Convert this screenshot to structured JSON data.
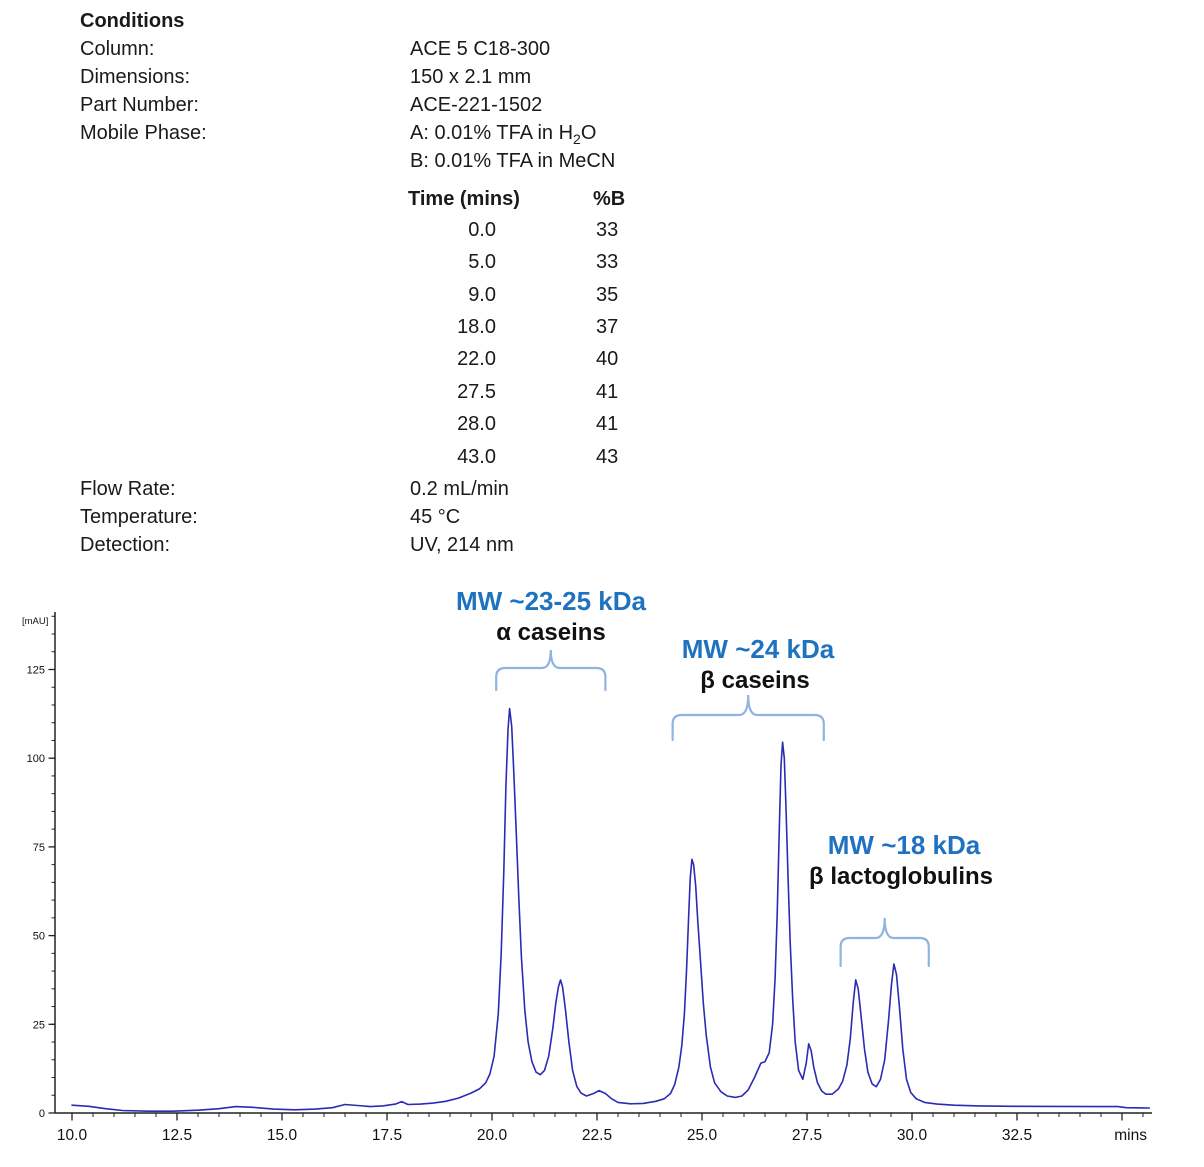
{
  "conditions": {
    "title": "Conditions",
    "column_label": "Column:",
    "column_value": "ACE 5 C18-300",
    "dimensions_label": "Dimensions:",
    "dimensions_value": "150 x 2.1 mm",
    "part_label": "Part Number:",
    "part_value": "ACE-221-1502",
    "mobile_label": "Mobile Phase:",
    "mobile_a_prefix": "A: 0.01% TFA in H",
    "mobile_a_sub": "2",
    "mobile_a_suffix": "O",
    "mobile_b": "B: 0.01% TFA in MeCN",
    "flow_label": "Flow Rate:",
    "flow_value": "0.2 mL/min",
    "temp_label": "Temperature:",
    "temp_value": "45 °C",
    "det_label": "Detection:",
    "det_value": "UV, 214 nm"
  },
  "gradient": {
    "time_header": "Time (mins)",
    "b_header": "%B",
    "rows": [
      {
        "time": "0.0",
        "b": "33"
      },
      {
        "time": "5.0",
        "b": "33"
      },
      {
        "time": "9.0",
        "b": "35"
      },
      {
        "time": "18.0",
        "b": "37"
      },
      {
        "time": "22.0",
        "b": "40"
      },
      {
        "time": "27.5",
        "b": "41"
      },
      {
        "time": "28.0",
        "b": "41"
      },
      {
        "time": "43.0",
        "b": "43"
      }
    ]
  },
  "chart_data": {
    "type": "line",
    "title": "",
    "xlabel": "mins",
    "ylabel": "[mAU]",
    "xlim": [
      9.6,
      35.7
    ],
    "ylim": [
      0,
      141
    ],
    "grid": false,
    "legend": "none",
    "trace_color": "#2b2bb4",
    "annotation_color": "#1e72bf",
    "brace_color": "#8fb4e2",
    "x_axis": {
      "unit": "mins",
      "labeled_ticks": [
        {
          "t": 10.0,
          "label": "10.0"
        },
        {
          "t": 12.5,
          "label": "12.5"
        },
        {
          "t": 15.0,
          "label": "15.0"
        },
        {
          "t": 17.5,
          "label": "17.5"
        },
        {
          "t": 20.0,
          "label": "20.0"
        },
        {
          "t": 22.5,
          "label": "22.5"
        },
        {
          "t": 25.0,
          "label": "25.0"
        },
        {
          "t": 27.5,
          "label": "27.5"
        },
        {
          "t": 30.0,
          "label": "30.0"
        },
        {
          "t": 32.5,
          "label": "32.5"
        }
      ],
      "unlabeled_major_ticks": [
        35.0
      ],
      "minor_tick_step": 0.5,
      "minor_tick_range": [
        10.0,
        35.5
      ]
    },
    "y_axis": {
      "unit": "[mAU]",
      "labeled_ticks": [
        {
          "v": 0,
          "label": "0"
        },
        {
          "v": 25,
          "label": "25"
        },
        {
          "v": 50,
          "label": "50"
        },
        {
          "v": 75,
          "label": "75"
        },
        {
          "v": 100,
          "label": "100"
        },
        {
          "v": 125,
          "label": "125"
        }
      ],
      "minor_tick_step": 5,
      "minor_tick_max": 140
    },
    "peaks": [
      {
        "name": "alpha casein 1",
        "rt_min": 20.4,
        "height_mau": 114
      },
      {
        "name": "alpha casein 2",
        "rt_min": 21.6,
        "height_mau": 38
      },
      {
        "name": "beta casein 1",
        "rt_min": 24.75,
        "height_mau": 72
      },
      {
        "name": "beta casein 2",
        "rt_min": 26.9,
        "height_mau": 105
      },
      {
        "name": "minor peak",
        "rt_min": 27.55,
        "height_mau": 20
      },
      {
        "name": "beta lactoglobulin 1",
        "rt_min": 28.65,
        "height_mau": 38
      },
      {
        "name": "beta lactoglobulin 2",
        "rt_min": 29.55,
        "height_mau": 42
      }
    ],
    "annotations": [
      {
        "id": "alpha-caseins",
        "mw": "MW ~23-25 kDa",
        "label": "α caseins",
        "brace": {
          "t1": 20.1,
          "t2": 22.7,
          "apex_t": 21.4
        }
      },
      {
        "id": "beta-caseins",
        "mw": "MW ~24 kDa",
        "label": "β caseins",
        "brace": {
          "t1": 24.3,
          "t2": 27.9,
          "apex_t": 26.1
        }
      },
      {
        "id": "beta-lactoglobulins",
        "mw": "MW ~18 kDa",
        "label": "β lactoglobulins",
        "brace": {
          "t1": 28.3,
          "t2": 30.4,
          "apex_t": 29.35
        }
      }
    ],
    "trace": [
      [
        10.0,
        2.2
      ],
      [
        10.4,
        1.9
      ],
      [
        10.8,
        1.2
      ],
      [
        11.2,
        0.7
      ],
      [
        11.8,
        0.5
      ],
      [
        12.4,
        0.5
      ],
      [
        13.0,
        0.8
      ],
      [
        13.5,
        1.2
      ],
      [
        13.9,
        1.8
      ],
      [
        14.3,
        1.6
      ],
      [
        14.8,
        1.1
      ],
      [
        15.3,
        0.9
      ],
      [
        15.8,
        1.1
      ],
      [
        16.2,
        1.5
      ],
      [
        16.5,
        2.4
      ],
      [
        16.8,
        2.1
      ],
      [
        17.1,
        1.8
      ],
      [
        17.4,
        2.0
      ],
      [
        17.7,
        2.5
      ],
      [
        17.85,
        3.2
      ],
      [
        18.0,
        2.4
      ],
      [
        18.3,
        2.5
      ],
      [
        18.6,
        2.8
      ],
      [
        18.9,
        3.3
      ],
      [
        19.2,
        4.2
      ],
      [
        19.5,
        5.6
      ],
      [
        19.7,
        6.8
      ],
      [
        19.85,
        8.5
      ],
      [
        19.95,
        11
      ],
      [
        20.05,
        16
      ],
      [
        20.15,
        28
      ],
      [
        20.22,
        45
      ],
      [
        20.28,
        68
      ],
      [
        20.33,
        92
      ],
      [
        20.38,
        108
      ],
      [
        20.42,
        114
      ],
      [
        20.47,
        109
      ],
      [
        20.52,
        96
      ],
      [
        20.58,
        78
      ],
      [
        20.64,
        60
      ],
      [
        20.7,
        44
      ],
      [
        20.78,
        29
      ],
      [
        20.86,
        20
      ],
      [
        20.95,
        14.5
      ],
      [
        21.05,
        11.5
      ],
      [
        21.15,
        10.8
      ],
      [
        21.25,
        12
      ],
      [
        21.35,
        16
      ],
      [
        21.45,
        24
      ],
      [
        21.52,
        31
      ],
      [
        21.58,
        35.5
      ],
      [
        21.63,
        37.5
      ],
      [
        21.68,
        35.5
      ],
      [
        21.75,
        29
      ],
      [
        21.83,
        20
      ],
      [
        21.92,
        12
      ],
      [
        22.02,
        7.5
      ],
      [
        22.12,
        5.6
      ],
      [
        22.25,
        4.8
      ],
      [
        22.4,
        5.4
      ],
      [
        22.55,
        6.3
      ],
      [
        22.7,
        5.5
      ],
      [
        22.85,
        4.0
      ],
      [
        23.0,
        3.0
      ],
      [
        23.3,
        2.6
      ],
      [
        23.6,
        2.7
      ],
      [
        23.9,
        3.3
      ],
      [
        24.1,
        4.0
      ],
      [
        24.25,
        5.5
      ],
      [
        24.35,
        8
      ],
      [
        24.45,
        13
      ],
      [
        24.52,
        19
      ],
      [
        24.58,
        28
      ],
      [
        24.63,
        40
      ],
      [
        24.68,
        55
      ],
      [
        24.72,
        66
      ],
      [
        24.76,
        71.5
      ],
      [
        24.8,
        70
      ],
      [
        24.85,
        64
      ],
      [
        24.9,
        54
      ],
      [
        24.97,
        42
      ],
      [
        25.03,
        31
      ],
      [
        25.1,
        22
      ],
      [
        25.2,
        13
      ],
      [
        25.3,
        8.5
      ],
      [
        25.45,
        6
      ],
      [
        25.6,
        4.8
      ],
      [
        25.8,
        4.4
      ],
      [
        25.95,
        4.8
      ],
      [
        26.1,
        6.5
      ],
      [
        26.25,
        10
      ],
      [
        26.4,
        14
      ],
      [
        26.5,
        14.5
      ],
      [
        26.6,
        17
      ],
      [
        26.68,
        25
      ],
      [
        26.74,
        38
      ],
      [
        26.79,
        56
      ],
      [
        26.84,
        80
      ],
      [
        26.88,
        98
      ],
      [
        26.92,
        104.5
      ],
      [
        26.96,
        100
      ],
      [
        27.0,
        86
      ],
      [
        27.05,
        66
      ],
      [
        27.1,
        48
      ],
      [
        27.16,
        32
      ],
      [
        27.22,
        20
      ],
      [
        27.3,
        12
      ],
      [
        27.4,
        9.5
      ],
      [
        27.48,
        14
      ],
      [
        27.54,
        19.5
      ],
      [
        27.6,
        17.5
      ],
      [
        27.66,
        13
      ],
      [
        27.75,
        8.5
      ],
      [
        27.85,
        6.2
      ],
      [
        27.95,
        5.3
      ],
      [
        28.1,
        5.3
      ],
      [
        28.25,
        6.8
      ],
      [
        28.35,
        9
      ],
      [
        28.45,
        13.5
      ],
      [
        28.53,
        21
      ],
      [
        28.6,
        31
      ],
      [
        28.66,
        37.5
      ],
      [
        28.72,
        35
      ],
      [
        28.79,
        27
      ],
      [
        28.87,
        18
      ],
      [
        28.95,
        11.5
      ],
      [
        29.05,
        8.2
      ],
      [
        29.15,
        7.4
      ],
      [
        29.25,
        9.5
      ],
      [
        29.35,
        15
      ],
      [
        29.44,
        26
      ],
      [
        29.51,
        36
      ],
      [
        29.57,
        42
      ],
      [
        29.63,
        39
      ],
      [
        29.7,
        30
      ],
      [
        29.78,
        18
      ],
      [
        29.87,
        9.5
      ],
      [
        29.97,
        5.8
      ],
      [
        30.1,
        4.0
      ],
      [
        30.3,
        3.0
      ],
      [
        30.6,
        2.5
      ],
      [
        31.0,
        2.2
      ],
      [
        31.6,
        2.0
      ],
      [
        32.4,
        1.9
      ],
      [
        33.4,
        1.85
      ],
      [
        34.4,
        1.8
      ],
      [
        34.9,
        1.8
      ],
      [
        35.1,
        1.5
      ],
      [
        35.65,
        1.4
      ]
    ]
  }
}
